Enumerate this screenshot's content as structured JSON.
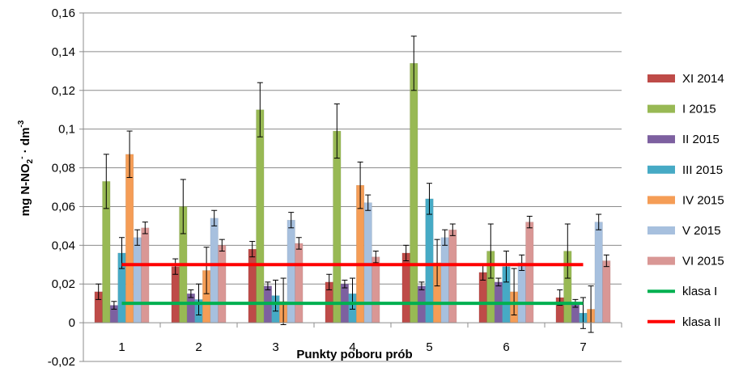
{
  "chart_data": {
    "type": "bar",
    "xlabel": "Punkty poboru prób",
    "ylabel": {
      "main": "mg N-NO",
      "sub": "2",
      "sup1": "-",
      "mid": " · dm",
      "sup2": "-3"
    },
    "ylim": [
      -0.02,
      0.16
    ],
    "yticks": [
      "-0,02",
      "0",
      "0,02",
      "0,04",
      "0,06",
      "0,08",
      "0,1",
      "0,12",
      "0,14",
      "0,16"
    ],
    "ytick_values": [
      -0.02,
      0,
      0.02,
      0.04,
      0.06,
      0.08,
      0.1,
      0.12,
      0.14,
      0.16
    ],
    "grid": true,
    "legend_position": "right",
    "categories": [
      "1",
      "2",
      "3",
      "4",
      "5",
      "6",
      "7"
    ],
    "series": [
      {
        "name": "XI 2014",
        "color": "#be4b48",
        "values": [
          0.016,
          0.029,
          0.038,
          0.021,
          0.036,
          0.026,
          0.013
        ],
        "errors": [
          0.004,
          0.004,
          0.004,
          0.004,
          0.004,
          0.004,
          0.004
        ]
      },
      {
        "name": "I 2015",
        "color": "#98b954",
        "values": [
          0.073,
          0.06,
          0.11,
          0.099,
          0.134,
          0.037,
          0.037
        ],
        "errors": [
          0.014,
          0.014,
          0.014,
          0.014,
          0.014,
          0.014,
          0.014
        ]
      },
      {
        "name": "II 2015",
        "color": "#7d60a0",
        "values": [
          0.009,
          0.015,
          0.019,
          0.02,
          0.019,
          0.021,
          0.01
        ],
        "errors": [
          0.002,
          0.002,
          0.002,
          0.002,
          0.002,
          0.002,
          0.002
        ]
      },
      {
        "name": "III 2015",
        "color": "#46aac5",
        "values": [
          0.036,
          0.012,
          0.014,
          0.015,
          0.064,
          0.029,
          0.005
        ],
        "errors": [
          0.008,
          0.008,
          0.008,
          0.008,
          0.008,
          0.008,
          0.008
        ]
      },
      {
        "name": "IV 2015",
        "color": "#f59d56",
        "values": [
          0.087,
          0.027,
          0.011,
          0.071,
          0.031,
          0.016,
          0.007
        ],
        "errors": [
          0.012,
          0.012,
          0.012,
          0.012,
          0.012,
          0.012,
          0.012
        ]
      },
      {
        "name": "V 2015",
        "color": "#a7c0de",
        "values": [
          0.044,
          0.054,
          0.053,
          0.062,
          0.044,
          0.031,
          0.052
        ],
        "errors": [
          0.004,
          0.004,
          0.004,
          0.004,
          0.004,
          0.004,
          0.004
        ]
      },
      {
        "name": "VI 2015",
        "color": "#d99795",
        "values": [
          0.049,
          0.04,
          0.041,
          0.034,
          0.048,
          0.052,
          0.032
        ],
        "errors": [
          0.003,
          0.003,
          0.003,
          0.003,
          0.003,
          0.003,
          0.003
        ]
      }
    ],
    "reference_lines": [
      {
        "name": "klasa I",
        "color": "#00b050",
        "value": 0.01,
        "x_from": "1",
        "x_to": "7"
      },
      {
        "name": "klasa II",
        "color": "#ff0000",
        "value": 0.03,
        "x_from": "1",
        "x_to": "7"
      }
    ]
  }
}
